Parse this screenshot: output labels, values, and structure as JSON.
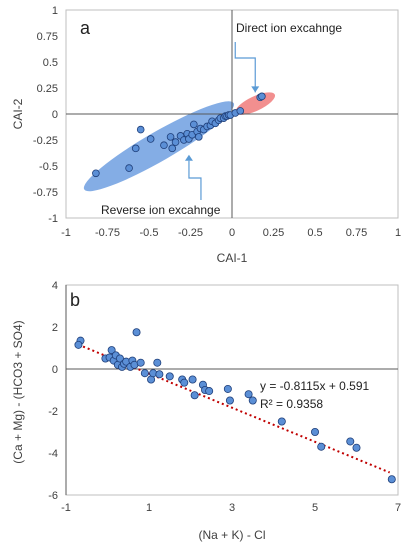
{
  "chart_data": [
    {
      "panel": "a",
      "type": "scatter",
      "xlabel": "CAI-1",
      "ylabel": "CAI-2",
      "xlim": [
        -1,
        1
      ],
      "ylim": [
        -1,
        1
      ],
      "xticks": [
        "-1",
        "-0.75",
        "-0.5",
        "-0.25",
        "0",
        "0.25",
        "0.5",
        "0.75",
        "1"
      ],
      "yticks": [
        "1",
        "0.75",
        "0.5",
        "0.25",
        "0",
        "-0.25",
        "-0.5",
        "-0.75",
        "-1"
      ],
      "grid": false,
      "points": [
        {
          "x": -0.82,
          "y": -0.57
        },
        {
          "x": -0.62,
          "y": -0.52
        },
        {
          "x": -0.58,
          "y": -0.33
        },
        {
          "x": -0.55,
          "y": -0.15
        },
        {
          "x": -0.49,
          "y": -0.24
        },
        {
          "x": -0.41,
          "y": -0.3
        },
        {
          "x": -0.37,
          "y": -0.22
        },
        {
          "x": -0.36,
          "y": -0.33
        },
        {
          "x": -0.34,
          "y": -0.27
        },
        {
          "x": -0.31,
          "y": -0.21
        },
        {
          "x": -0.29,
          "y": -0.25
        },
        {
          "x": -0.27,
          "y": -0.19
        },
        {
          "x": -0.26,
          "y": -0.24
        },
        {
          "x": -0.24,
          "y": -0.2
        },
        {
          "x": -0.23,
          "y": -0.1
        },
        {
          "x": -0.21,
          "y": -0.17
        },
        {
          "x": -0.2,
          "y": -0.22
        },
        {
          "x": -0.19,
          "y": -0.14
        },
        {
          "x": -0.17,
          "y": -0.15
        },
        {
          "x": -0.15,
          "y": -0.12
        },
        {
          "x": -0.13,
          "y": -0.11
        },
        {
          "x": -0.12,
          "y": -0.07
        },
        {
          "x": -0.1,
          "y": -0.09
        },
        {
          "x": -0.08,
          "y": -0.06
        },
        {
          "x": -0.07,
          "y": -0.04
        },
        {
          "x": -0.05,
          "y": -0.04
        },
        {
          "x": -0.04,
          "y": -0.02
        },
        {
          "x": -0.03,
          "y": -0.02
        },
        {
          "x": -0.02,
          "y": -0.01
        },
        {
          "x": -0.01,
          "y": -0.01
        },
        {
          "x": 0.02,
          "y": 0.01
        },
        {
          "x": 0.05,
          "y": 0.03
        },
        {
          "x": 0.17,
          "y": 0.16
        },
        {
          "x": 0.18,
          "y": 0.17
        }
      ],
      "regions": [
        {
          "label": "Reverse ion excahnge",
          "color": "#6f9fe0",
          "center": [
            -0.44,
            -0.31
          ],
          "rx": 0.52,
          "ry": 0.14,
          "angle_deg": 30
        },
        {
          "label": "Direct ion excahnge",
          "color": "#f07b7b",
          "center": [
            0.14,
            0.1
          ],
          "rx": 0.13,
          "ry": 0.07,
          "angle_deg": 25
        }
      ]
    },
    {
      "panel": "b",
      "type": "scatter",
      "xlabel": "(Na + K) - Cl",
      "ylabel": "(Ca + Mg) - (HCO3 + SO4)",
      "xlim": [
        -1,
        7
      ],
      "ylim": [
        -6,
        4
      ],
      "xticks": [
        "-1",
        "1",
        "3",
        "5",
        "7"
      ],
      "yticks": [
        "4",
        "2",
        "0",
        "-2",
        "-4",
        "-6"
      ],
      "grid": false,
      "points": [
        {
          "x": -0.65,
          "y": 1.35
        },
        {
          "x": -0.7,
          "y": 1.15
        },
        {
          "x": -0.05,
          "y": 0.5
        },
        {
          "x": 0.05,
          "y": 0.55
        },
        {
          "x": 0.1,
          "y": 0.9
        },
        {
          "x": 0.15,
          "y": 0.4
        },
        {
          "x": 0.2,
          "y": 0.65
        },
        {
          "x": 0.25,
          "y": 0.2
        },
        {
          "x": 0.3,
          "y": 0.5
        },
        {
          "x": 0.35,
          "y": 0.1
        },
        {
          "x": 0.4,
          "y": 0.25
        },
        {
          "x": 0.45,
          "y": 0.35
        },
        {
          "x": 0.55,
          "y": 0.1
        },
        {
          "x": 0.6,
          "y": 0.4
        },
        {
          "x": 0.65,
          "y": 0.2
        },
        {
          "x": 0.7,
          "y": 1.75
        },
        {
          "x": 0.8,
          "y": 0.3
        },
        {
          "x": 0.9,
          "y": -0.2
        },
        {
          "x": 1.05,
          "y": -0.5
        },
        {
          "x": 1.1,
          "y": -0.2
        },
        {
          "x": 1.2,
          "y": 0.3
        },
        {
          "x": 1.25,
          "y": -0.25
        },
        {
          "x": 1.5,
          "y": -0.35
        },
        {
          "x": 1.8,
          "y": -0.5
        },
        {
          "x": 1.85,
          "y": -0.65
        },
        {
          "x": 2.05,
          "y": -0.5
        },
        {
          "x": 2.1,
          "y": -1.25
        },
        {
          "x": 2.3,
          "y": -0.75
        },
        {
          "x": 2.35,
          "y": -1.0
        },
        {
          "x": 2.45,
          "y": -1.05
        },
        {
          "x": 2.9,
          "y": -0.95
        },
        {
          "x": 2.95,
          "y": -1.5
        },
        {
          "x": 3.4,
          "y": -1.2
        },
        {
          "x": 3.5,
          "y": -1.5
        },
        {
          "x": 4.2,
          "y": -2.5
        },
        {
          "x": 5.0,
          "y": -3.0
        },
        {
          "x": 5.15,
          "y": -3.7
        },
        {
          "x": 5.85,
          "y": -3.45
        },
        {
          "x": 6.0,
          "y": -3.75
        },
        {
          "x": 6.85,
          "y": -5.25
        }
      ],
      "trendline": {
        "slope": -0.8115,
        "intercept": 0.591,
        "x_range": [
          -0.7,
          6.8
        ],
        "equation": "y = -0.8115x + 0.591",
        "r_squared": "R² = 0.9358",
        "style": "dotted",
        "color": "#c00000"
      }
    }
  ],
  "colors": {
    "point_fill": "#5b8fd6",
    "point_stroke": "#1f3f7a",
    "axis": "#595959",
    "callout_arrow": "#5b9bd5"
  },
  "figure": {
    "panel_a_letter": "a",
    "panel_b_letter": "b",
    "panel_a_xlabel": "CAI-1",
    "panel_a_ylabel": "CAI-2",
    "panel_b_xlabel": "(Na + K) - Cl",
    "panel_b_ylabel": "(Ca + Mg) - (HCO3 + SO4)",
    "annotation_direct": "Direct ion excahnge",
    "annotation_reverse": "Reverse ion excahnge",
    "trend_equation": "y = -0.8115x + 0.591",
    "trend_r2": "R² = 0.9358"
  }
}
